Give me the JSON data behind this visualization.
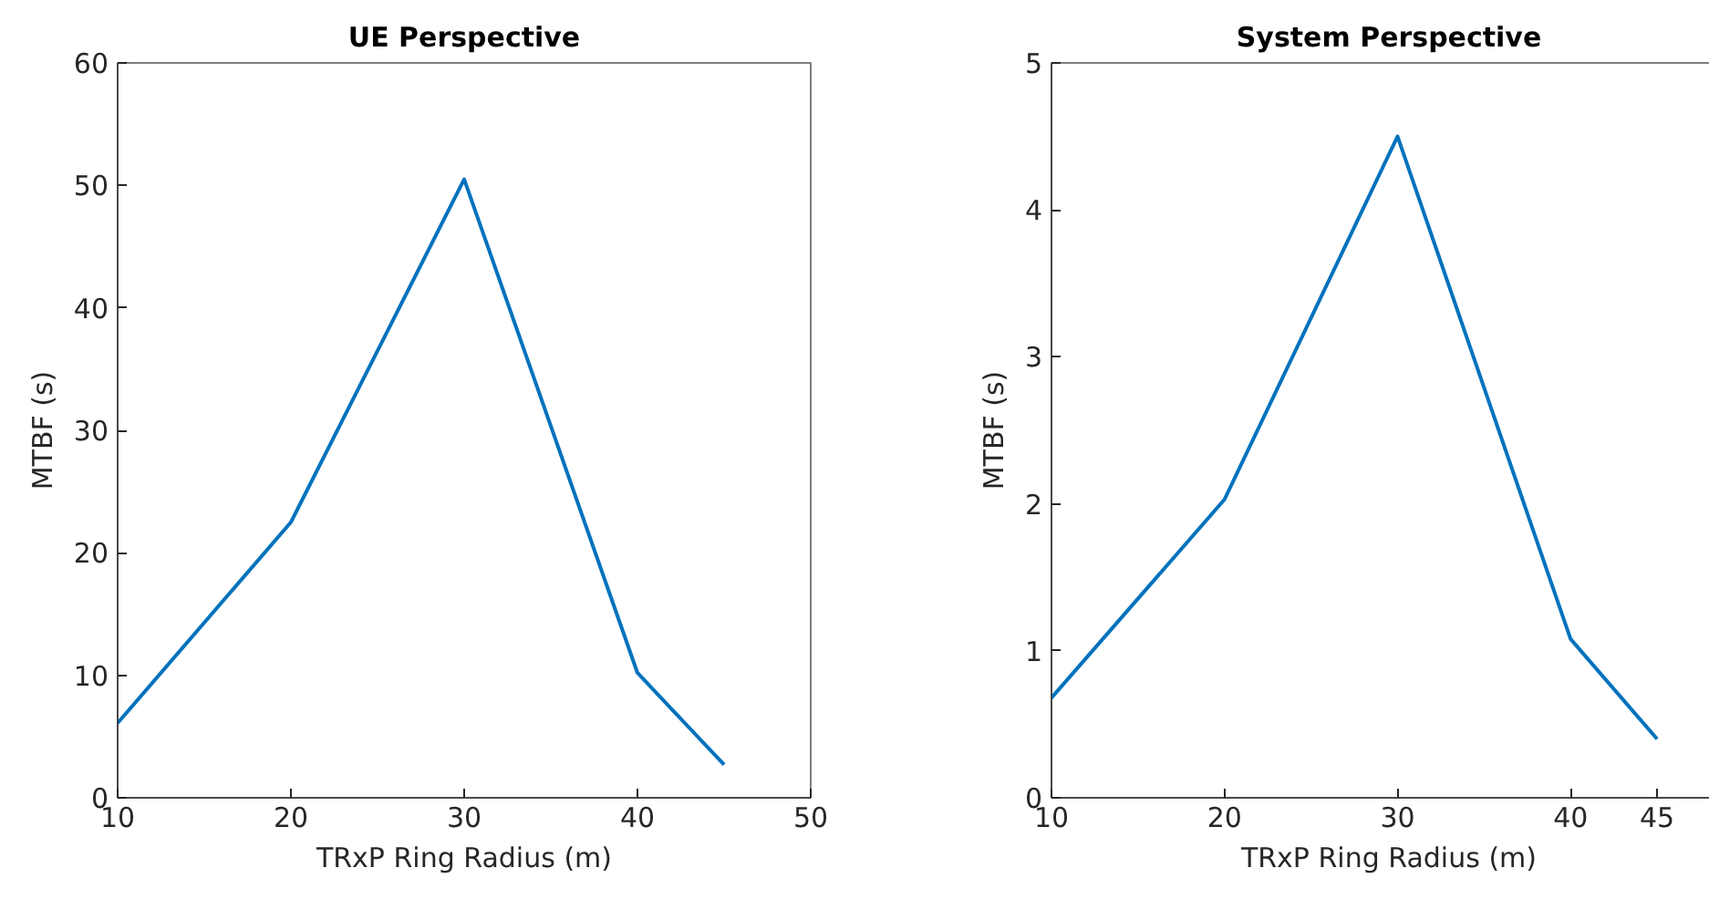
{
  "chart_data": [
    {
      "type": "line",
      "title": "UE Perspective",
      "xlabel": "TRxP Ring Radius (m)",
      "ylabel": "MTBF (s)",
      "x": [
        10,
        20,
        30,
        40,
        45
      ],
      "series": [
        {
          "color": "#0072bd",
          "values": [
            6.1,
            22.5,
            50.5,
            10.2,
            2.7
          ]
        }
      ],
      "xlim": [
        10,
        50
      ],
      "xticks": [
        10,
        20,
        30,
        40,
        50
      ],
      "ylim": [
        0,
        60
      ],
      "yticks": [
        0,
        10,
        20,
        30,
        40,
        50,
        60
      ],
      "grid": false
    },
    {
      "type": "line",
      "title": "System Perspective",
      "xlabel": "TRxP Ring Radius (m)",
      "ylabel": "MTBF (s)",
      "x": [
        10,
        20,
        30,
        40,
        45
      ],
      "series": [
        {
          "color": "#0072bd",
          "values": [
            0.68,
            2.03,
            4.5,
            1.08,
            0.4
          ]
        }
      ],
      "xlim": [
        10,
        49
      ],
      "xticks": [
        10,
        20,
        30,
        40,
        45
      ],
      "ylim": [
        0,
        5
      ],
      "yticks": [
        0,
        1,
        2,
        3,
        4,
        5
      ],
      "grid": false
    }
  ]
}
